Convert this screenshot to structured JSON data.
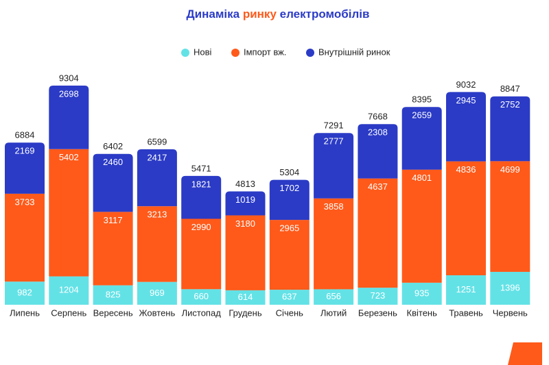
{
  "chart_data": {
    "type": "stacked-bar",
    "title": {
      "start": "Динаміка",
      "highlight": "ринку",
      "end": "електромобілів"
    },
    "categories": [
      "Липень",
      "Серпень",
      "Вересень",
      "Жовтень",
      "Листопад",
      "Грудень",
      "Січень",
      "Лютий",
      "Березень",
      "Квітень",
      "Травень",
      "Червень"
    ],
    "series": [
      {
        "name": "Нові",
        "color": "#63e2e6",
        "values": [
          982,
          1204,
          825,
          969,
          660,
          614,
          637,
          656,
          723,
          935,
          1251,
          1396
        ]
      },
      {
        "name": "Імпорт вж.",
        "color": "#ff5a1a",
        "values": [
          3733,
          5402,
          3117,
          3213,
          2990,
          3180,
          2965,
          3858,
          4637,
          4801,
          4836,
          4699
        ]
      },
      {
        "name": "Внутрішній ринок",
        "color": "#2b3bc6",
        "values": [
          2169,
          2698,
          2460,
          2417,
          1821,
          1019,
          1702,
          2777,
          2308,
          2659,
          2945,
          2752
        ]
      }
    ],
    "totals": [
      6884,
      9304,
      6402,
      6599,
      5471,
      4813,
      5304,
      7291,
      7668,
      8395,
      9032,
      8847
    ]
  }
}
